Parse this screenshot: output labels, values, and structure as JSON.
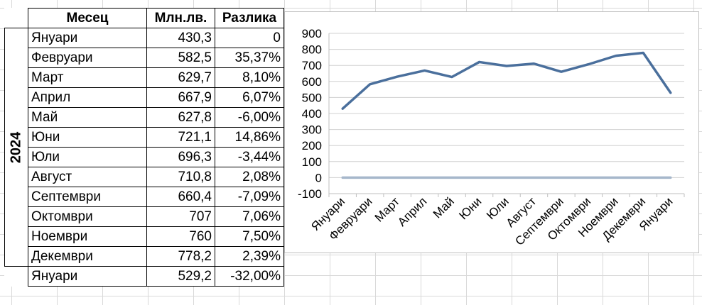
{
  "table": {
    "headers": [
      "Месец",
      "Млн.лв.",
      "Разлика"
    ],
    "year": "2024",
    "rows": [
      {
        "month": "Януари",
        "value": "430,3",
        "diff": "0"
      },
      {
        "month": "Февруари",
        "value": "582,5",
        "diff": "35,37%"
      },
      {
        "month": "Март",
        "value": "629,7",
        "diff": "8,10%"
      },
      {
        "month": "Април",
        "value": "667,9",
        "diff": "6,07%"
      },
      {
        "month": "Май",
        "value": "627,8",
        "diff": "-6,00%"
      },
      {
        "month": "Юни",
        "value": "721,1",
        "diff": "14,86%"
      },
      {
        "month": "Юли",
        "value": "696,3",
        "diff": "-3,44%"
      },
      {
        "month": "Август",
        "value": "710,8",
        "diff": "2,08%"
      },
      {
        "month": "Септември",
        "value": "660,4",
        "diff": "-7,09%"
      },
      {
        "month": "Октомври",
        "value": "707",
        "diff": "7,06%"
      },
      {
        "month": "Ноември",
        "value": "760",
        "diff": "7,50%"
      },
      {
        "month": "Декември",
        "value": "778,2",
        "diff": "2,39%"
      },
      {
        "month": "Януари",
        "value": "529,2",
        "diff": "-32,00%"
      }
    ]
  },
  "chart_data": {
    "type": "line",
    "categories": [
      "Януари",
      "Февруари",
      "Март",
      "Април",
      "Май",
      "Юни",
      "Юли",
      "Август",
      "Септември",
      "Октомври",
      "Ноември",
      "Декември",
      "Януари"
    ],
    "series": [
      {
        "values": [
          430.3,
          582.5,
          629.7,
          667.9,
          627.8,
          721.1,
          696.3,
          710.8,
          660.4,
          707,
          760,
          778.2,
          529.2
        ],
        "color": "#4a6f9c"
      },
      {
        "values": [
          0,
          0,
          0,
          0,
          0,
          0,
          0,
          0,
          0,
          0,
          0,
          0,
          0
        ],
        "color": "#a6b7cb"
      }
    ],
    "yticks": [
      "-100",
      "0",
      "100",
      "200",
      "300",
      "400",
      "500",
      "600",
      "700",
      "800",
      "900"
    ],
    "ylim": [
      -100,
      900
    ],
    "grid": true,
    "legend": "none"
  }
}
